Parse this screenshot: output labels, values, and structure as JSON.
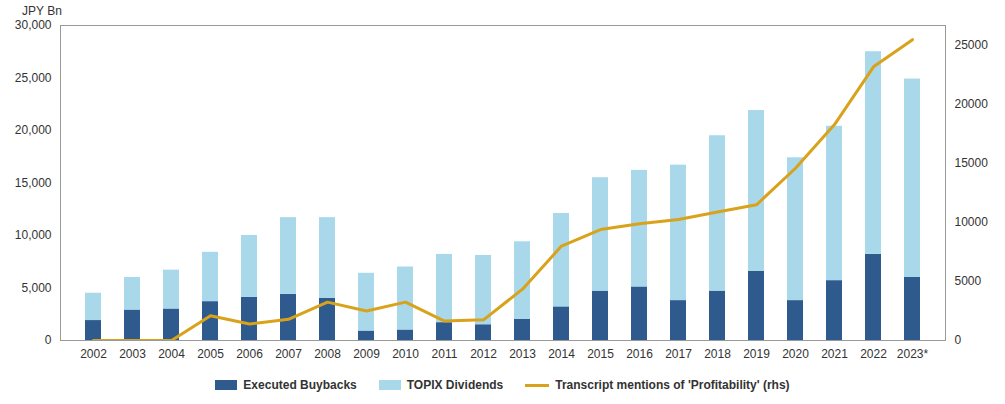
{
  "chart_data": {
    "type": "bar",
    "stacked": true,
    "y_label": "JPY Bn",
    "categories": [
      "2002",
      "2003",
      "2004",
      "2005",
      "2006",
      "2007",
      "2008",
      "2009",
      "2010",
      "2011",
      "2012",
      "2013",
      "2014",
      "2015",
      "2016",
      "2017",
      "2018",
      "2019",
      "2020",
      "2021",
      "2022",
      "2023*"
    ],
    "series": [
      {
        "name": "Executed Buybacks",
        "color": "#2e5a8e",
        "values": [
          1900,
          2900,
          3000,
          3700,
          4100,
          4400,
          4000,
          900,
          1000,
          1700,
          1500,
          2000,
          3200,
          4700,
          5100,
          3800,
          4700,
          6600,
          3800,
          5700,
          8200,
          6000
        ]
      },
      {
        "name": "TOPIX Dividends",
        "color": "#a8d8ea",
        "values": [
          2600,
          3100,
          3700,
          4700,
          5900,
          7300,
          7700,
          5500,
          6000,
          6500,
          6600,
          7400,
          8900,
          10800,
          11100,
          12900,
          14800,
          15300,
          13600,
          14700,
          19300,
          18900
        ]
      },
      {
        "name": "Transcript mentions of 'Profitability' (rhs)",
        "type": "line",
        "axis": "y2",
        "color": "#d9a21b",
        "values": [
          0,
          0,
          0,
          2100,
          1400,
          1800,
          3250,
          2500,
          3250,
          1650,
          1750,
          4350,
          8000,
          9400,
          9900,
          10250,
          10900,
          11500,
          14600,
          18300,
          23200,
          25500
        ]
      }
    ],
    "ylim": [
      0,
      30000
    ],
    "yticks": [
      0,
      {
        "value": 5000,
        "label": "5,000"
      },
      {
        "value": 10000,
        "label": "10,000"
      },
      {
        "value": 15000,
        "label": "15,000"
      },
      {
        "value": 20000,
        "label": "20,000"
      },
      {
        "value": 25000,
        "label": "25,000"
      },
      {
        "value": 30000,
        "label": "30,000"
      }
    ],
    "y2lim": [
      0,
      26700
    ],
    "y2ticks": [
      0,
      5000,
      10000,
      15000,
      20000,
      25000
    ],
    "legend": "bottom",
    "grid": false
  }
}
